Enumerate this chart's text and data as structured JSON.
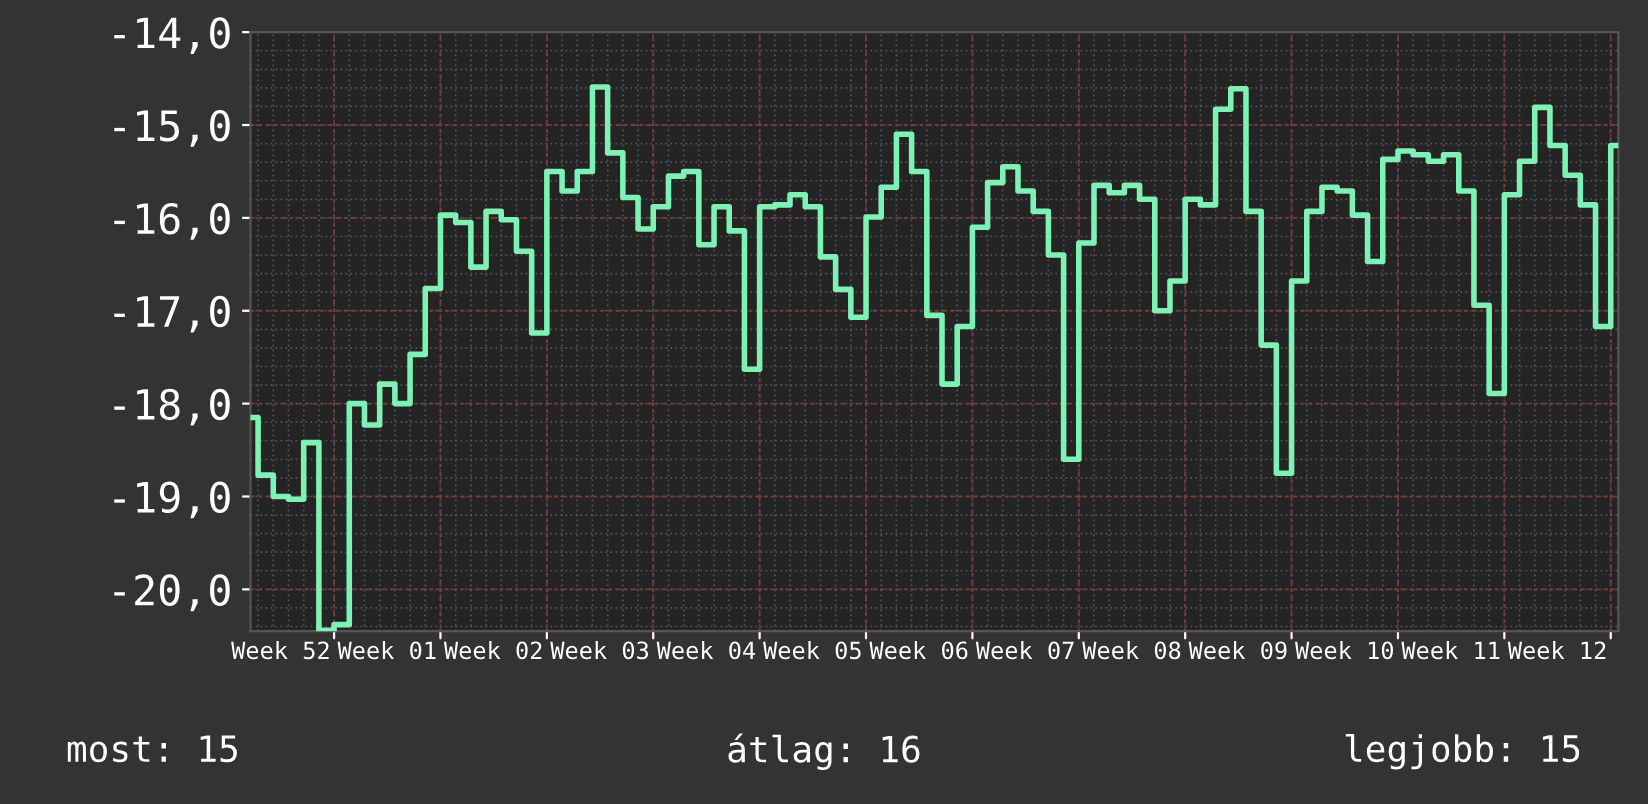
{
  "chart_data": {
    "type": "step",
    "categories": [
      null,
      null,
      "Week 52",
      null,
      null,
      null,
      null,
      null,
      null,
      "Week 01",
      null,
      null,
      null,
      null,
      null,
      null,
      "Week 02",
      null,
      null,
      null,
      null,
      null,
      null,
      "Week 03",
      null,
      null,
      null,
      null,
      null,
      null,
      "Week 04",
      null,
      null,
      null,
      null,
      null,
      null,
      "Week 05",
      null,
      null,
      null,
      null,
      null,
      null,
      "Week 06",
      null,
      null,
      null,
      null,
      null,
      null,
      "Week 07",
      null,
      null,
      null,
      null,
      null,
      null,
      "Week 08",
      null,
      null,
      null,
      null,
      null,
      null,
      "Week 09",
      null,
      null,
      null,
      null,
      null,
      null,
      "Week 10",
      null,
      null,
      null,
      null,
      null,
      null,
      "Week 11",
      null,
      null,
      null,
      null,
      null,
      null,
      "Week 12",
      null,
      null,
      null,
      null
    ],
    "series": [
      {
        "color": "#7ef2b4",
        "values": [
          -18.15,
          -18.77,
          -19.0,
          -19.03,
          -18.42,
          -20.44,
          -20.38,
          -18.0,
          -18.23,
          -17.79,
          -18.0,
          -17.47,
          -16.76,
          -15.97,
          -16.05,
          -16.53,
          -15.93,
          -16.02,
          -16.36,
          -17.24,
          -15.5,
          -15.71,
          -15.5,
          -14.59,
          -15.3,
          -15.78,
          -16.12,
          -15.88,
          -15.55,
          -15.5,
          -16.29,
          -15.88,
          -16.14,
          -17.63,
          -15.88,
          -15.86,
          -15.75,
          -15.88,
          -16.42,
          -16.77,
          -17.07,
          -15.99,
          -15.67,
          -15.1,
          -15.5,
          -17.05,
          -17.79,
          -17.17,
          -16.1,
          -15.62,
          -15.45,
          -15.71,
          -15.93,
          -16.4,
          -18.6,
          -16.27,
          -15.65,
          -15.73,
          -15.65,
          -15.8,
          -17.0,
          -16.68,
          -15.8,
          -15.86,
          -14.83,
          -14.61,
          -15.93,
          -17.37,
          -18.75,
          -16.68,
          -15.93,
          -15.67,
          -15.71,
          -15.97,
          -16.47,
          -15.37,
          -15.28,
          -15.32,
          -15.39,
          -15.32,
          -15.71,
          -16.94,
          -17.89,
          -15.75,
          -15.39,
          -14.81,
          -15.22,
          -15.54,
          -15.86,
          -17.17,
          -15.22
        ]
      }
    ],
    "ylim": [
      -20.45,
      -14.0
    ],
    "yticks": [
      {
        "value": -20,
        "label": "-20,0"
      },
      {
        "value": -19,
        "label": "-19,0"
      },
      {
        "value": -18,
        "label": "-18,0"
      },
      {
        "value": -17,
        "label": "-17,0"
      },
      {
        "value": -16,
        "label": "-16,0"
      },
      {
        "value": -15,
        "label": "-15,0"
      },
      {
        "value": -14,
        "label": "-14,0"
      }
    ],
    "grid": true,
    "annotations": [
      "most: 15",
      "átlag: 16",
      "legjobb: 15"
    ]
  }
}
